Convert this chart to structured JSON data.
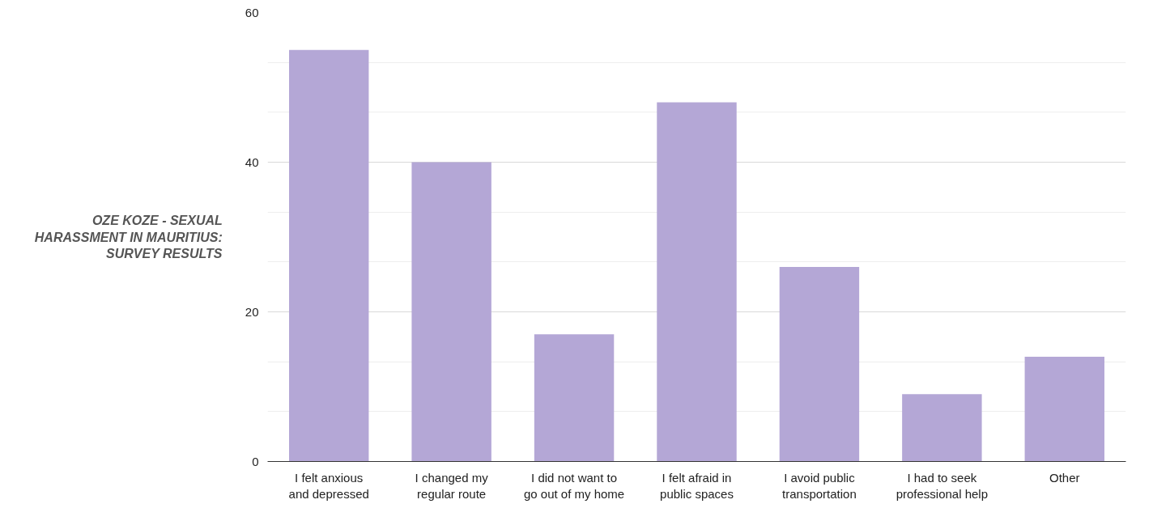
{
  "chart_data": {
    "type": "bar",
    "ylabel": "OZE KOZE - SEXUAL HARASSMENT IN MAURITIUS: SURVEY RESULTS",
    "categories": [
      "I felt anxious and depressed",
      "I changed my regular route",
      "I did not want to go out of my home",
      "I felt afraid in public spaces",
      "I avoid public transportation",
      "I had to seek professional help",
      "Other"
    ],
    "values": [
      55,
      40,
      17,
      48,
      26,
      9,
      14
    ],
    "color": "#b4a7d6",
    "ylim": [
      0,
      60
    ],
    "yticks": [
      0,
      20,
      40,
      60
    ],
    "grid": "y"
  }
}
